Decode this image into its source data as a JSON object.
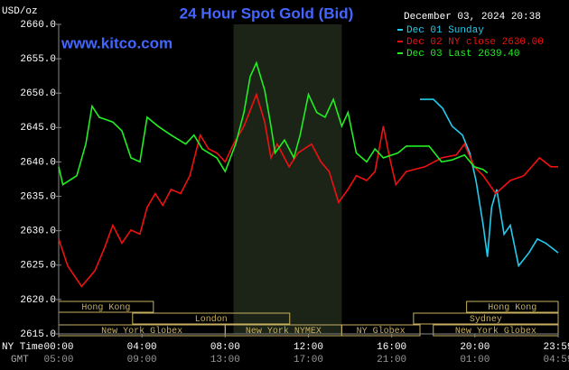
{
  "chart_data": {
    "type": "line",
    "title": "24 Hour Spot Gold (Bid)",
    "y_label": "USD/oz",
    "timestamp": "December 03, 2024 20:38",
    "source": "www.kitco.com",
    "x_row_labels": [
      "NY Time",
      "GMT"
    ],
    "xlim": [
      0,
      24
    ],
    "ylim": [
      2615,
      2660
    ],
    "yticks": [
      {
        "value": 2615,
        "label": "2615.0"
      },
      {
        "value": 2620,
        "label": "2620.0"
      },
      {
        "value": 2625,
        "label": "2625.0"
      },
      {
        "value": 2630,
        "label": "2630.0"
      },
      {
        "value": 2635,
        "label": "2635.0"
      },
      {
        "value": 2640,
        "label": "2640.0"
      },
      {
        "value": 2645,
        "label": "2645.0"
      },
      {
        "value": 2650,
        "label": "2650.0"
      },
      {
        "value": 2655,
        "label": "2655.0"
      },
      {
        "value": 2660,
        "label": "2660.0"
      }
    ],
    "xticks": [
      {
        "value": 0,
        "label": "00:00"
      },
      {
        "value": 4,
        "label": "04:00"
      },
      {
        "value": 8,
        "label": "08:00"
      },
      {
        "value": 12,
        "label": "12:00"
      },
      {
        "value": 16,
        "label": "16:00"
      },
      {
        "value": 20,
        "label": "20:00"
      },
      {
        "value": 24,
        "label": "23:59"
      }
    ],
    "gmt_labels": [
      "05:00",
      "09:00",
      "13:00",
      "17:00",
      "21:00",
      "01:00",
      "04:59"
    ],
    "grid": false,
    "shaded_span": [
      8.4,
      13.6
    ],
    "sessions": [
      {
        "label": "Hong Kong",
        "start": 0,
        "end": 4.55,
        "row": 0
      },
      {
        "label": "London",
        "start": 3.55,
        "end": 11.1,
        "row": 1
      },
      {
        "label": "New York Globex",
        "start": 0,
        "end": 8,
        "row": 2
      },
      {
        "label": "New York NYMEX",
        "start": 8,
        "end": 13.6,
        "row": 2
      },
      {
        "label": "NY Globex",
        "start": 13.6,
        "end": 17.36,
        "row": 2
      },
      {
        "label": "Hong Kong",
        "start": 19.6,
        "end": 24,
        "row": 0
      },
      {
        "label": "Sydney",
        "start": 17.05,
        "end": 24,
        "row": 1
      },
      {
        "label": "New York Globex",
        "start": 18,
        "end": 24,
        "row": 2
      }
    ],
    "series": [
      {
        "name": "Dec 01 Sunday",
        "color": "#22ccee",
        "x": [
          17.36,
          18.0,
          18.45,
          18.9,
          19.4,
          19.75,
          20.05,
          20.4,
          20.6,
          20.8,
          21.05,
          21.4,
          21.7,
          22.1,
          22.6,
          23,
          23.4,
          24
        ],
        "values": [
          2649.1,
          2649.1,
          2647.8,
          2645.2,
          2643.9,
          2641.3,
          2637.3,
          2630.8,
          2626.2,
          2633.4,
          2636,
          2629.5,
          2630.8,
          2624.9,
          2626.8,
          2628.8,
          2628.2,
          2626.8
        ]
      },
      {
        "name": "Dec 02 NY close 2630.00",
        "color": "#ee1111",
        "x": [
          0,
          0.43,
          1.1,
          1.74,
          2.2,
          2.6,
          3.04,
          3.47,
          3.9,
          4.25,
          4.64,
          5,
          5.4,
          5.86,
          6.3,
          6.8,
          7.2,
          7.6,
          8.0,
          8.4,
          8.9,
          9.5,
          9.9,
          10.2,
          10.5,
          11.07,
          11.5,
          12.15,
          12.6,
          13,
          13.45,
          13.9,
          14.3,
          14.8,
          15.2,
          15.6,
          15.9,
          16.2,
          16.7,
          17.6,
          18.4,
          19.1,
          19.5,
          19.97,
          20.4,
          21,
          21.7,
          22.35,
          23.1,
          23.65,
          24
        ],
        "values": [
          2628.8,
          2624.9,
          2621.9,
          2624.2,
          2627.5,
          2630.8,
          2628.2,
          2630.1,
          2629.5,
          2633.4,
          2635.4,
          2633.7,
          2636,
          2635.4,
          2638,
          2643.9,
          2641.9,
          2641.3,
          2640,
          2642.6,
          2645.2,
          2649.8,
          2645.8,
          2640.6,
          2642.6,
          2639.3,
          2641.3,
          2642.6,
          2640,
          2638.6,
          2634.1,
          2636,
          2638,
          2637.3,
          2638.6,
          2645.2,
          2640.6,
          2636.7,
          2638.6,
          2639.3,
          2640.6,
          2641,
          2642.6,
          2639.3,
          2638,
          2635.4,
          2637.3,
          2638,
          2640.6,
          2639.3,
          2639.3
        ]
      },
      {
        "name": "Dec 03 Last 2639.40",
        "color": "#22ee22",
        "x": [
          0,
          0.2,
          0.87,
          1.3,
          1.6,
          1.95,
          2.6,
          3.04,
          3.47,
          3.9,
          4.25,
          4.77,
          5.4,
          6.1,
          6.5,
          6.9,
          7.6,
          8.0,
          8.5,
          8.9,
          9.2,
          9.5,
          9.9,
          10.2,
          10.4,
          10.85,
          11.3,
          11.6,
          12,
          12.4,
          12.8,
          13.2,
          13.6,
          13.9,
          14.3,
          14.8,
          15.2,
          15.6,
          16.3,
          16.7,
          17.8,
          18.4,
          18.9,
          19.5,
          19.97,
          20.4,
          20.6
        ],
        "values": [
          2639.3,
          2636.7,
          2638,
          2642.6,
          2648.1,
          2646.5,
          2645.8,
          2644.5,
          2640.6,
          2640,
          2646.5,
          2645.2,
          2643.9,
          2642.6,
          2643.9,
          2641.9,
          2640.6,
          2638.6,
          2642.6,
          2647.2,
          2652.4,
          2654.4,
          2650.4,
          2645.2,
          2641.3,
          2643.2,
          2640.6,
          2643.9,
          2649.8,
          2647.2,
          2646.5,
          2649.1,
          2645.2,
          2647.2,
          2641.3,
          2640,
          2641.9,
          2640.6,
          2641.3,
          2642.3,
          2642.3,
          2640,
          2640.3,
          2641,
          2639.3,
          2638.9,
          2638.4
        ]
      }
    ]
  }
}
